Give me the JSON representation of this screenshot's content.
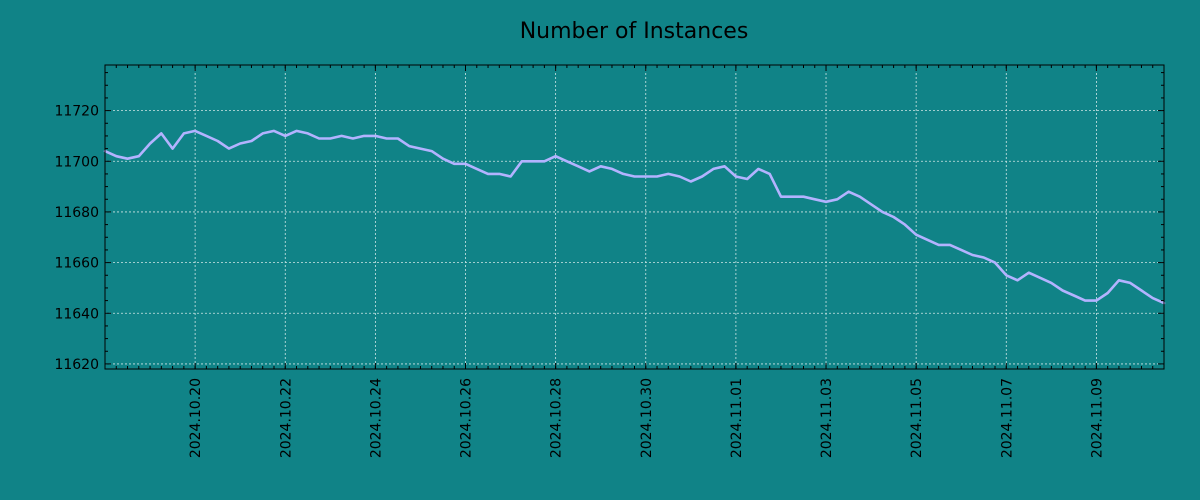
{
  "chart_data": {
    "type": "line",
    "title": "Number of Instances",
    "xlabel": "",
    "ylabel": "",
    "x_range": [
      "2024.10.18 00:00",
      "2024.11.10 12:00"
    ],
    "ylim": [
      11618,
      11738
    ],
    "y_ticks": [
      11620,
      11640,
      11660,
      11680,
      11700,
      11720
    ],
    "x_ticks": [
      "2024.10.20",
      "2024.10.22",
      "2024.10.24",
      "2024.10.26",
      "2024.10.28",
      "2024.10.30",
      "2024.11.01",
      "2024.11.03",
      "2024.11.05",
      "2024.11.07",
      "2024.11.09"
    ],
    "grid": true,
    "colors": {
      "background": "#108387",
      "line": "#b3b3ff",
      "axis": "#000000",
      "grid": "#cfe6e6"
    },
    "series": [
      {
        "x": [
          "2024.10.18 00:00",
          "2024.10.18 06:00",
          "2024.10.18 12:00",
          "2024.10.18 18:00",
          "2024.10.19 00:00",
          "2024.10.19 06:00",
          "2024.10.19 12:00",
          "2024.10.19 18:00",
          "2024.10.20 00:00",
          "2024.10.20 06:00",
          "2024.10.20 12:00",
          "2024.10.20 18:00",
          "2024.10.21 00:00",
          "2024.10.21 06:00",
          "2024.10.21 12:00",
          "2024.10.21 18:00",
          "2024.10.22 00:00",
          "2024.10.22 06:00",
          "2024.10.22 12:00",
          "2024.10.22 18:00",
          "2024.10.23 00:00",
          "2024.10.23 06:00",
          "2024.10.23 12:00",
          "2024.10.23 18:00",
          "2024.10.24 00:00",
          "2024.10.24 06:00",
          "2024.10.24 12:00",
          "2024.10.24 18:00",
          "2024.10.25 00:00",
          "2024.10.25 06:00",
          "2024.10.25 12:00",
          "2024.10.25 18:00",
          "2024.10.26 00:00",
          "2024.10.26 06:00",
          "2024.10.26 12:00",
          "2024.10.26 18:00",
          "2024.10.27 00:00",
          "2024.10.27 06:00",
          "2024.10.27 12:00",
          "2024.10.27 18:00",
          "2024.10.28 00:00",
          "2024.10.28 06:00",
          "2024.10.28 12:00",
          "2024.10.28 18:00",
          "2024.10.29 00:00",
          "2024.10.29 06:00",
          "2024.10.29 12:00",
          "2024.10.29 18:00",
          "2024.10.30 00:00",
          "2024.10.30 06:00",
          "2024.10.30 12:00",
          "2024.10.30 18:00",
          "2024.10.31 00:00",
          "2024.10.31 06:00",
          "2024.10.31 12:00",
          "2024.10.31 18:00",
          "2024.11.01 00:00",
          "2024.11.01 06:00",
          "2024.11.01 12:00",
          "2024.11.01 18:00",
          "2024.11.02 00:00",
          "2024.11.02 06:00",
          "2024.11.02 12:00",
          "2024.11.02 18:00",
          "2024.11.03 00:00",
          "2024.11.03 06:00",
          "2024.11.03 12:00",
          "2024.11.03 18:00",
          "2024.11.04 00:00",
          "2024.11.04 06:00",
          "2024.11.04 12:00",
          "2024.11.04 18:00",
          "2024.11.05 00:00",
          "2024.11.05 06:00",
          "2024.11.05 12:00",
          "2024.11.05 18:00",
          "2024.11.06 00:00",
          "2024.11.06 06:00",
          "2024.11.06 12:00",
          "2024.11.06 18:00",
          "2024.11.07 00:00",
          "2024.11.07 06:00",
          "2024.11.07 12:00",
          "2024.11.07 18:00",
          "2024.11.08 00:00",
          "2024.11.08 06:00",
          "2024.11.08 12:00",
          "2024.11.08 18:00",
          "2024.11.09 00:00",
          "2024.11.09 06:00",
          "2024.11.09 12:00",
          "2024.11.09 18:00",
          "2024.11.10 00:00",
          "2024.11.10 06:00",
          "2024.11.10 12:00"
        ],
        "values": [
          11704,
          11702,
          11701,
          11702,
          11707,
          11711,
          11705,
          11711,
          11712,
          11710,
          11708,
          11705,
          11707,
          11708,
          11711,
          11712,
          11710,
          11712,
          11711,
          11709,
          11709,
          11710,
          11709,
          11710,
          11710,
          11709,
          11709,
          11706,
          11705,
          11704,
          11701,
          11699,
          11699,
          11697,
          11695,
          11695,
          11694,
          11700,
          11700,
          11700,
          11702,
          11700,
          11698,
          11696,
          11698,
          11697,
          11695,
          11694,
          11694,
          11694,
          11695,
          11694,
          11692,
          11694,
          11697,
          11698,
          11694,
          11693,
          11697,
          11695,
          11686,
          11686,
          11686,
          11685,
          11684,
          11685,
          11688,
          11686,
          11683,
          11680,
          11678,
          11675,
          11671,
          11669,
          11667,
          11667,
          11665,
          11663,
          11662,
          11660,
          11655,
          11653,
          11656,
          11654,
          11652,
          11649,
          11647,
          11645,
          11645,
          11648,
          11653,
          11652,
          11649,
          11646,
          11644
        ]
      }
    ]
  }
}
